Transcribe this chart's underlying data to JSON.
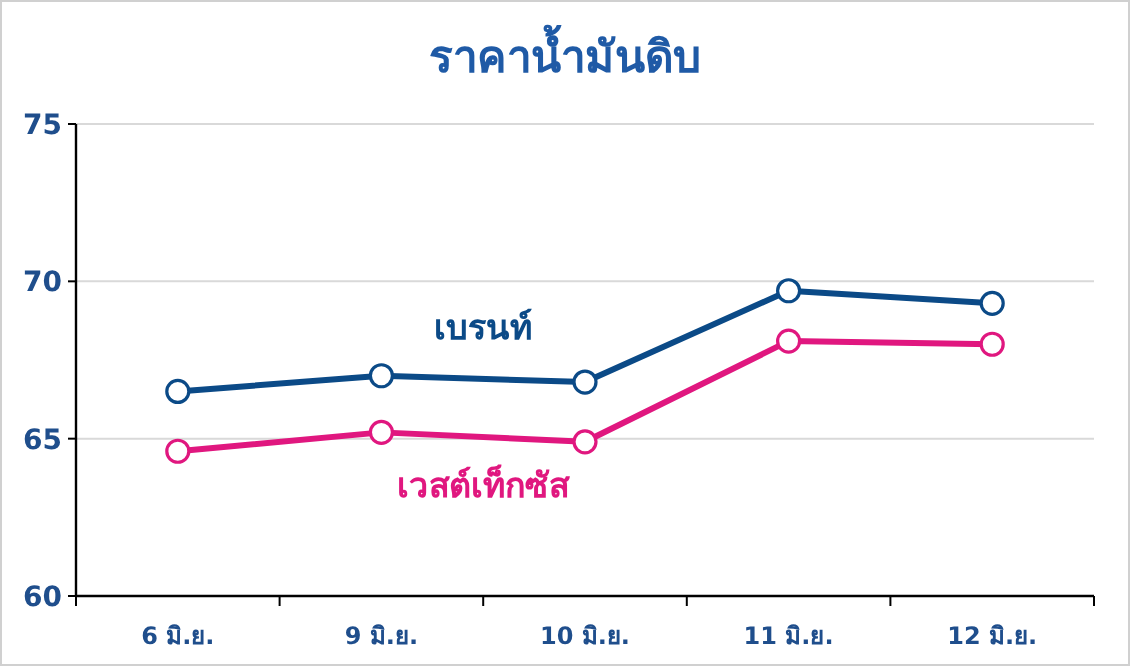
{
  "chart_data": {
    "type": "line",
    "title": "ราคาน้ำมันดิบ",
    "categories": [
      "6 มิ.ย.",
      "9 มิ.ย.",
      "10 มิ.ย.",
      "11 มิ.ย.",
      "12 มิ.ย."
    ],
    "series": [
      {
        "name": "เบรนท์",
        "color": "#0b4a87",
        "values": [
          66.5,
          67.0,
          66.8,
          69.7,
          69.3
        ]
      },
      {
        "name": "เวสต์เท็กซัส",
        "color": "#e0177f",
        "values": [
          64.6,
          65.2,
          64.9,
          68.1,
          68.0
        ]
      }
    ],
    "ylim": [
      60,
      75
    ],
    "yticks": [
      60,
      65,
      70,
      75
    ],
    "grid": "y",
    "legend": false,
    "marker": "circle",
    "line_style": "solid"
  }
}
